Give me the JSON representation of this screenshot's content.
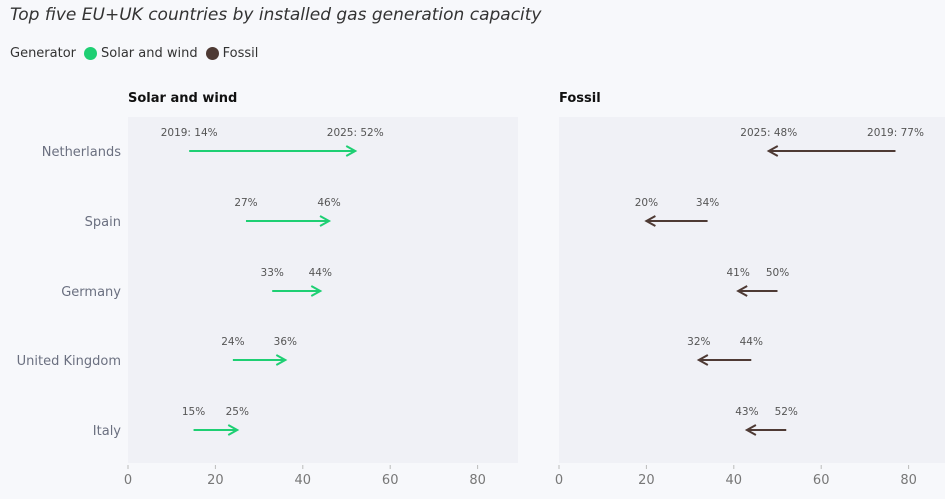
{
  "chart_data": {
    "type": "dumbbell-arrow",
    "title": "Top five EU+UK countries by installed gas generation capacity",
    "legend": {
      "title": "Generator",
      "entries": [
        {
          "name": "Solar and wind",
          "color": "#1ecf73"
        },
        {
          "name": "Fossil",
          "color": "#4e3a34"
        }
      ],
      "placement": "top-left"
    },
    "categories": [
      "Netherlands",
      "Spain",
      "Germany",
      "United Kingdom",
      "Italy"
    ],
    "x_ticks": [
      "0",
      "20",
      "40",
      "60",
      "80"
    ],
    "xlim": [
      0,
      90
    ],
    "panels": [
      {
        "name": "Solar and wind",
        "color": "#1ecf73",
        "start_2019": [
          14,
          27,
          33,
          24,
          15
        ],
        "end_2025": [
          52,
          46,
          44,
          36,
          25
        ],
        "start_labels": [
          "2019: 14%",
          "27%",
          "33%",
          "24%",
          "15%"
        ],
        "end_labels": [
          "2025: 52%",
          "46%",
          "44%",
          "36%",
          "25%"
        ]
      },
      {
        "name": "Fossil",
        "color": "#4e3a34",
        "start_2019": [
          77,
          34,
          50,
          44,
          52
        ],
        "end_2025": [
          48,
          20,
          41,
          32,
          43
        ],
        "start_labels": [
          "2019: 77%",
          "34%",
          "50%",
          "44%",
          "52%"
        ],
        "end_labels": [
          "2025: 48%",
          "20%",
          "41%",
          "32%",
          "43%"
        ]
      }
    ]
  }
}
